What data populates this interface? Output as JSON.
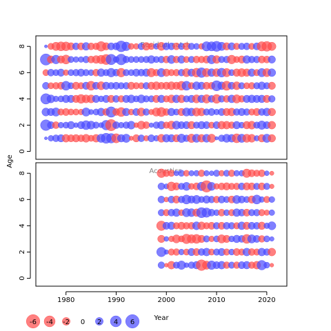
{
  "chart_data": {
    "type": "scatter",
    "subtype": "bubble residual plot",
    "ylabel": "Age",
    "xlabel": "Year",
    "xlim": [
      1974,
      2024
    ],
    "xticks": [
      1980,
      1990,
      2000,
      2010,
      2020
    ],
    "ylim": [
      -0.6,
      8.8
    ],
    "yticks": [
      0,
      2,
      4,
      6,
      8
    ],
    "ages": [
      1,
      2,
      3,
      4,
      5,
      6,
      7,
      8
    ],
    "positive_color": "#4a4aff",
    "negative_color": "#ff4a4a",
    "panels": [
      {
        "title": "Residual catch",
        "years": [
          1976,
          1977,
          1978,
          1979,
          1980,
          1981,
          1982,
          1983,
          1984,
          1985,
          1986,
          1987,
          1988,
          1989,
          1990,
          1991,
          1992,
          1993,
          1994,
          1995,
          1996,
          1997,
          1998,
          1999,
          2000,
          2001,
          2002,
          2003,
          2004,
          2005,
          2006,
          2007,
          2008,
          2009,
          2010,
          2011,
          2012,
          2013,
          2014,
          2015,
          2016,
          2017,
          2018,
          2019,
          2020,
          2021
        ],
        "residuals": [
          [
            0.3,
            1.1,
            1.6,
            1.8,
            -2.0,
            -1.7,
            -1.9,
            -1.6,
            -2.1,
            -1.3,
            -2.0,
            2.3,
            3.4,
            3.0,
            -2.8,
            1.9,
            2.3,
            -0.6,
            -1.8,
            1.6,
            -1.0,
            1.7,
            1.1,
            -2.1,
            2.0,
            1.9,
            -1.8,
            2.4,
            1.5,
            -2.4,
            2.2,
            -2.0,
            2.1,
            -2.3,
            0.4,
            1.5,
            2.2,
            2.0,
            -2.7,
            2.3,
            -2.2,
            -2.1,
            1.0,
            -1.9,
            2.3,
            -1.9
          ],
          [
            3.8,
            1.7,
            -1.6,
            1.1,
            1.3,
            1.9,
            0.8,
            1.8,
            2.7,
            2.2,
            1.4,
            0.9,
            3.1,
            -4.2,
            1.6,
            1.1,
            1.5,
            2.1,
            -0.8,
            -2.2,
            -1.6,
            0.7,
            1.5,
            2.0,
            -1.4,
            -2.2,
            2.2,
            1.7,
            1.8,
            -1.9,
            1.4,
            1.9,
            1.7,
            -1.3,
            1.7,
            -2.0,
            -2.0,
            -1.5,
            1.9,
            1.2,
            -1.9,
            -2.1,
            1.4,
            2.4,
            1.7,
            -2.0
          ],
          [
            2.1,
            1.8,
            2.3,
            -1.4,
            -1.7,
            -1.3,
            -1.3,
            -1.1,
            2.3,
            0.9,
            1.3,
            2.0,
            -1.6,
            3.6,
            -1.6,
            -2.7,
            1.9,
            -1.2,
            1.7,
            -2.2,
            1.5,
            -1.0,
            -2.3,
            -2.8,
            -1.6,
            1.9,
            1.3,
            -1.8,
            2.2,
            2.0,
            -2.2,
            -2.0,
            1.4,
            1.7,
            1.1,
            1.7,
            -1.8,
            -2.0,
            1.5,
            1.8,
            1.5,
            -1.4,
            -1.8,
            1.6,
            2.0,
            -1.9
          ],
          [
            3.6,
            2.1,
            1.1,
            1.3,
            1.9,
            1.8,
            -1.8,
            -2.6,
            -2.1,
            -2.1,
            1.8,
            1.2,
            1.8,
            -1.8,
            1.6,
            -1.5,
            1.8,
            2.1,
            1.3,
            2.2,
            1.4,
            1.4,
            -1.8,
            1.9,
            -1.4,
            -2.1,
            2.0,
            -2.0,
            1.4,
            1.8,
            -2.2,
            1.9,
            -2.4,
            1.6,
            -2.6,
            1.5,
            -1.6,
            2.0,
            -2.3,
            -1.5,
            1.8,
            2.0,
            1.8,
            1.9,
            -1.8,
            1.5
          ],
          [
            1.6,
            -1.3,
            -1.5,
            -1.7,
            2.7,
            1.3,
            -1.8,
            -1.4,
            1.8,
            -2.7,
            1.7,
            -2.2,
            1.8,
            1.5,
            1.7,
            1.4,
            1.5,
            -1.8,
            -1.4,
            -1.3,
            1.5,
            -1.8,
            -2.1,
            -1.6,
            -1.8,
            -2.1,
            -1.8,
            -2.6,
            2.7,
            -1.4,
            2.1,
            1.8,
            -1.7,
            -1.6,
            3.4,
            2.0,
            -2.8,
            1.7,
            -2.1,
            1.4,
            -1.3,
            -1.5,
            1.4,
            2.0,
            1.4,
            -1.8
          ],
          [
            -1.3,
            1.6,
            1.3,
            1.8,
            -1.1,
            1.3,
            1.5,
            1.8,
            1.4,
            1.2,
            -1.6,
            2.0,
            1.4,
            2.5,
            1.6,
            -2.5,
            1.4,
            1.3,
            1.8,
            1.6,
            1.9,
            -2.4,
            -1.5,
            2.3,
            -1.8,
            -1.4,
            -1.5,
            1.5,
            -2.2,
            1.8,
            -2.6,
            3.1,
            -2.3,
            2.0,
            -2.1,
            2.6,
            -2.3,
            1.3,
            -1.9,
            -2.2,
            -1.9,
            1.9,
            -1.4,
            2.3,
            -2.2,
            2.0
          ],
          [
            4.2,
            -1.8,
            2.5,
            -1.8,
            -2.7,
            1.3,
            1.1,
            1.1,
            1.5,
            -1.6,
            -2.0,
            -2.4,
            -3.4,
            3.6,
            1.2,
            3.8,
            1.5,
            1.3,
            1.3,
            1.3,
            1.4,
            2.0,
            1.3,
            1.5,
            -1.6,
            2.2,
            -1.5,
            1.9,
            -1.3,
            1.4,
            -1.6,
            -1.5,
            -1.8,
            2.5,
            -2.0,
            1.4,
            1.5,
            -2.5,
            -1.3,
            -1.8,
            2.0,
            1.5,
            1.5,
            -1.7,
            -1.6,
            1.8
          ],
          [
            0.3,
            -1.3,
            -2.3,
            -2.7,
            -2.6,
            -1.8,
            1.6,
            -1.7,
            2.0,
            -1.6,
            -1.5,
            -3.1,
            -1.8,
            1.7,
            1.7,
            3.9,
            2.5,
            -1.2,
            -1.1,
            1.5,
            -2.0,
            -1.4,
            1.1,
            -2.2,
            1.7,
            1.6,
            -1.6,
            1.4,
            -1.7,
            1.4,
            1.2,
            -1.1,
            2.9,
            2.8,
            3.4,
            2.3,
            -1.8,
            1.8,
            -1.4,
            1.4,
            1.6,
            -1.3,
            1.7,
            -2.9,
            -3.2,
            -2.3
          ]
        ]
      },
      {
        "title": "Acoustics",
        "years": [
          1999,
          2000,
          2001,
          2002,
          2003,
          2004,
          2005,
          2006,
          2007,
          2008,
          2009,
          2010,
          2011,
          2012,
          2013,
          2014,
          2015,
          2016,
          2017,
          2018,
          2019,
          2020,
          2021
        ],
        "residuals": [
          [
            1.5,
            -0.5,
            -2.0,
            1.4,
            2.4,
            0.8,
            1.5,
            1.9,
            -3.8,
            -2.3,
            2.5,
            1.7,
            2.0,
            -1.5,
            1.4,
            -1.5,
            1.7,
            1.9,
            -1.5,
            -2.0,
            3.0,
            1.2,
            -0.5
          ],
          [
            2.9,
            0.7,
            -1.4,
            -1.5,
            1.1,
            -1.3,
            1.8,
            -1.7,
            1.6,
            2.0,
            -1.3,
            1.4,
            1.8,
            -1.4,
            1.2,
            -1.7,
            -1.4,
            2.0,
            -1.6,
            -1.4,
            2.0,
            1.5,
            -2.0
          ],
          [
            -1.8,
            0.8,
            -1.1,
            -2.2,
            -1.3,
            -3.0,
            -2.4,
            -2.7,
            -1.8,
            1.4,
            -1.1,
            1.3,
            -2.3,
            -1.8,
            1.2,
            1.9,
            1.6,
            -2.7,
            2.3,
            1.7,
            -1.5,
            1.3,
            0.7
          ],
          [
            -3.0,
            1.7,
            1.9,
            -1.4,
            -1.8,
            -1.5,
            -1.6,
            2.1,
            -2.0,
            -1.4,
            -1.7,
            1.5,
            -1.7,
            1.6,
            1.5,
            -1.4,
            2.0,
            -1.8,
            1.7,
            1.6,
            -1.9,
            1.1,
            2.2
          ],
          [
            1.4,
            -1.4,
            1.6,
            2.0,
            -1.2,
            2.3,
            2.1,
            -1.9,
            3.4,
            2.9,
            1.6,
            1.2,
            -1.6,
            1.2,
            -1.4,
            2.0,
            1.6,
            -1.7,
            1.4,
            1.5,
            -1.4,
            -1.0,
            1.1
          ],
          [
            1.6,
            -0.8,
            1.6,
            -1.8,
            1.5,
            2.7,
            1.8,
            2.3,
            1.3,
            1.9,
            1.5,
            -1.5,
            1.7,
            1.3,
            -1.7,
            2.2,
            1.7,
            1.3,
            -1.8,
            2.7,
            1.1,
            -1.4,
            1.2
          ],
          [
            1.6,
            0.9,
            -2.6,
            -1.8,
            1.4,
            2.2,
            -1.2,
            -1.7,
            2.4,
            -4.3,
            2.2,
            -1.1,
            -1.6,
            -1.8,
            -1.4,
            -1.5,
            1.6,
            -1.8,
            -1.7,
            1.4,
            -1.7,
            1.4,
            -0.7
          ],
          [
            -2.5,
            -1.5,
            -1.4,
            0.9,
            1.3,
            -1.2,
            1.0,
            1.1,
            -1.5,
            1.0,
            0.8,
            1.4,
            -1.1,
            1.3,
            -1.5,
            1.1,
            1.1,
            -2.4,
            -1.7,
            -1.4,
            -1.6,
            0.8,
            -0.6
          ]
        ]
      }
    ],
    "legend": {
      "entries": [
        -6,
        -4,
        -2,
        0,
        2,
        4,
        6
      ],
      "labels": [
        "-6",
        "-4",
        "-2",
        "0",
        "2",
        "4",
        "6"
      ]
    }
  }
}
